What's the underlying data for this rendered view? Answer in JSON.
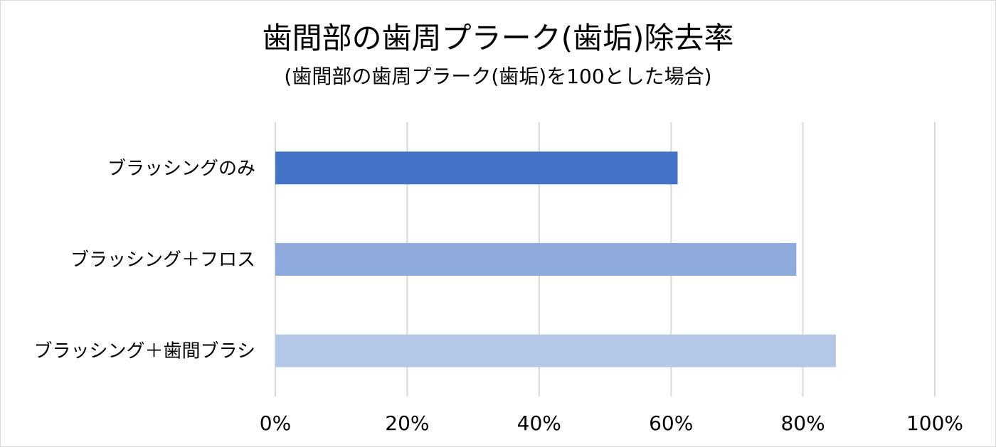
{
  "chart_data": {
    "type": "bar",
    "orientation": "horizontal",
    "title": "歯間部の歯周プラーク(歯垢)除去率",
    "subtitle": "(歯間部の歯周プラーク(歯垢)を100とした場合)",
    "categories": [
      "ブラッシングのみ",
      "ブラッシング＋フロス",
      "ブラッシング＋歯間ブラシ"
    ],
    "values": [
      61,
      79,
      85
    ],
    "colors": [
      "#4472c4",
      "#8faadc",
      "#b4c7e7"
    ],
    "xlim": [
      0,
      100
    ],
    "x_ticks": [
      "0%",
      "20%",
      "40%",
      "60%",
      "80%",
      "100%"
    ],
    "grid": true,
    "legend": "none"
  }
}
